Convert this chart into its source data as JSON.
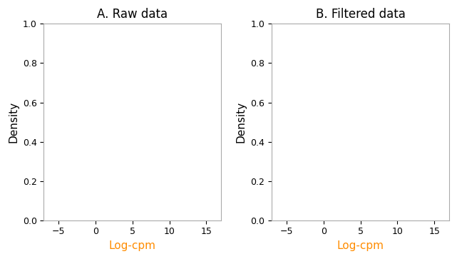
{
  "title_A": "A. Raw data",
  "title_B": "B. Filtered data",
  "xlabel": "Log-cpm",
  "ylabel": "Density",
  "xlim": [
    -7,
    17
  ],
  "ylim": [
    0.0,
    1.0
  ],
  "xticks": [
    -5,
    0,
    5,
    10,
    15
  ],
  "yticks": [
    0.0,
    0.2,
    0.4,
    0.6,
    0.8,
    1.0
  ],
  "raw_colors": [
    "#FF8C00",
    "#20B2AA",
    "#696969",
    "#2E8B57",
    "#8B0000",
    "#4682B4",
    "#9400D3",
    "#FF69B4",
    "#2F4F4F",
    "#000000"
  ],
  "filt_colors": [
    "#A9A9A9",
    "#B0B0B0",
    "#C0C0C0",
    "#D3D3D3",
    "#D3D3D3",
    "#A9A9A9",
    "#C8A8C8",
    "#FFB0A0",
    "#000000",
    "#000000"
  ],
  "n_raw": 10,
  "n_filt": 10,
  "title_fontsize": 12,
  "label_fontsize": 11,
  "tick_fontsize": 9,
  "xlabel_color": "#FF8C00",
  "ylabel_color": "#000000",
  "bg_color": "#ffffff",
  "panel_bg": "#ffffff",
  "spine_color": "#aaaaaa"
}
